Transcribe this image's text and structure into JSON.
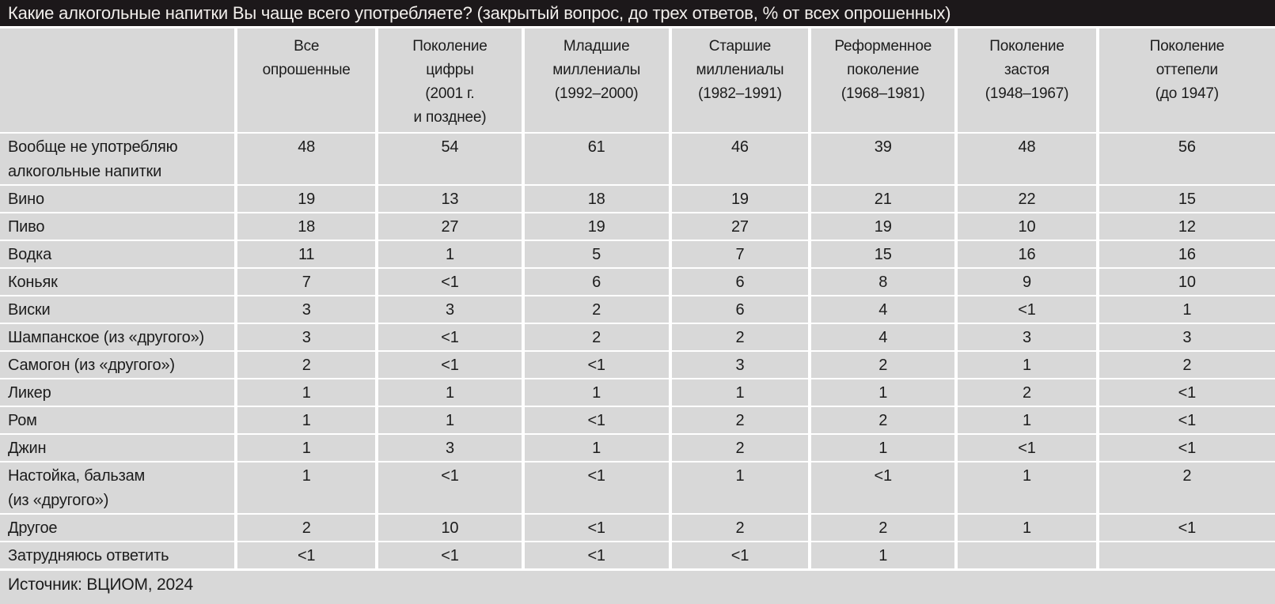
{
  "colors": {
    "title_bar_bg": "#1c181a",
    "title_text": "#f2efec",
    "cell_bg": "#d8d8d8",
    "separator": "#ffffff",
    "text": "#1c1c1c"
  },
  "chart_data": {
    "type": "table",
    "title": "Какие алкогольные напитки Вы чаще всего употребляете? (закрытый вопрос, до трех ответов, % от всех опрошенных)",
    "source": "Источник: ВЦИОМ, 2024",
    "columns": [
      "Все\nопрошенные",
      "Поколение\nцифры\n(2001 г.\nи позднее)",
      "Младшие\nмиллениалы\n(1992–2000)",
      "Старшие\nмиллениалы\n(1982–1991)",
      "Реформенное\nпоколение\n(1968–1981)",
      "Поколение\nзастоя\n(1948–1967)",
      "Поколение\nоттепели\n(до 1947)"
    ],
    "rows": [
      {
        "label": "Вообще не употребляю\nалкогольные напитки",
        "values": [
          "48",
          "54",
          "61",
          "46",
          "39",
          "48",
          "56"
        ]
      },
      {
        "label": "Вино",
        "values": [
          "19",
          "13",
          "18",
          "19",
          "21",
          "22",
          "15"
        ]
      },
      {
        "label": "Пиво",
        "values": [
          "18",
          "27",
          "19",
          "27",
          "19",
          "10",
          "12"
        ]
      },
      {
        "label": "Водка",
        "values": [
          "11",
          "1",
          "5",
          "7",
          "15",
          "16",
          "16"
        ]
      },
      {
        "label": "Коньяк",
        "values": [
          "7",
          "<1",
          "6",
          "6",
          "8",
          "9",
          "10"
        ]
      },
      {
        "label": "Виски",
        "values": [
          "3",
          "3",
          "2",
          "6",
          "4",
          "<1",
          "1"
        ]
      },
      {
        "label": "Шампанское (из «другого»)",
        "values": [
          "3",
          "<1",
          "2",
          "2",
          "4",
          "3",
          "3"
        ]
      },
      {
        "label": "Самогон (из «другого»)",
        "values": [
          "2",
          "<1",
          "<1",
          "3",
          "2",
          "1",
          "2"
        ]
      },
      {
        "label": "Ликер",
        "values": [
          "1",
          "1",
          "1",
          "1",
          "1",
          "2",
          "<1"
        ]
      },
      {
        "label": "Ром",
        "values": [
          "1",
          "1",
          "<1",
          "2",
          "2",
          "1",
          "<1"
        ]
      },
      {
        "label": "Джин",
        "values": [
          "1",
          "3",
          "1",
          "2",
          "1",
          "<1",
          "<1"
        ]
      },
      {
        "label": "Настойка, бальзам\n(из «другого»)",
        "values": [
          "1",
          "<1",
          "<1",
          "1",
          "<1",
          "1",
          "2"
        ]
      },
      {
        "label": "Другое",
        "values": [
          "2",
          "10",
          "<1",
          "2",
          "2",
          "1",
          "<1"
        ]
      },
      {
        "label": "Затрудняюсь ответить",
        "values": [
          "<1",
          "<1",
          "<1",
          "<1",
          "1",
          "",
          ""
        ]
      }
    ]
  }
}
